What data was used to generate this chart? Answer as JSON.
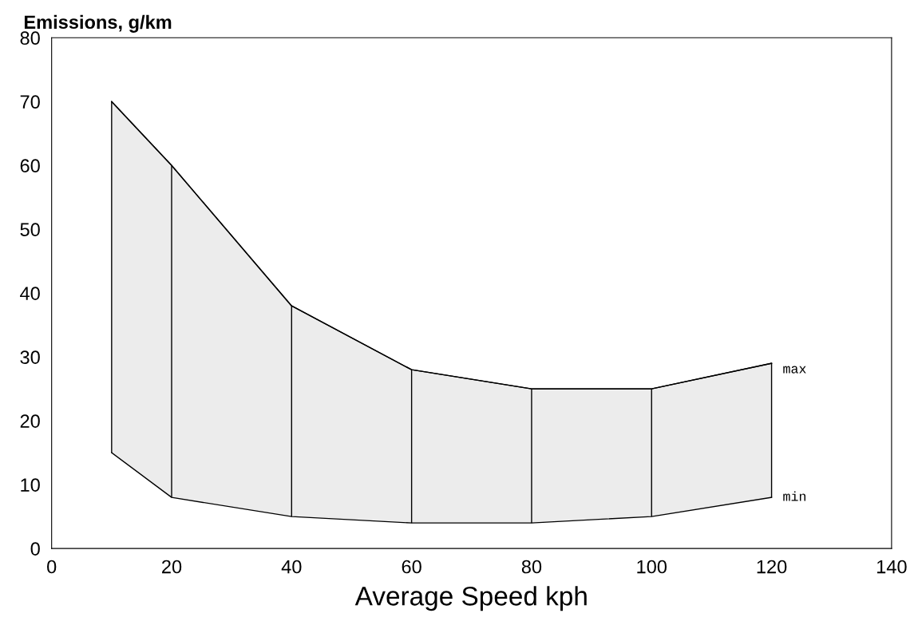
{
  "chart_data": {
    "type": "area",
    "ylabel": "Emissions, g/km",
    "xlabel": "Average Speed kph",
    "x": [
      10,
      20,
      40,
      60,
      80,
      100,
      120
    ],
    "series": [
      {
        "color": "#ececec",
        "values": [
          70,
          60,
          38,
          28,
          25,
          25,
          29
        ],
        "errors": [
          [
            15,
            70
          ],
          [
            8,
            60
          ],
          [
            5,
            38
          ],
          [
            4,
            28
          ],
          [
            4,
            25
          ],
          [
            5,
            25
          ],
          [
            8,
            29
          ]
        ]
      }
    ],
    "annotations": [
      {
        "text": "max",
        "x": 120,
        "y": 28
      },
      {
        "text": "min",
        "x": 120,
        "y": 8
      }
    ],
    "xlim": [
      0,
      140
    ],
    "xticks": [
      0,
      20,
      40,
      60,
      80,
      100,
      120,
      140
    ],
    "ylim": [
      0,
      80
    ],
    "yticks": [
      0,
      10,
      20,
      30,
      40,
      50,
      60,
      70,
      80
    ],
    "grid": false
  }
}
